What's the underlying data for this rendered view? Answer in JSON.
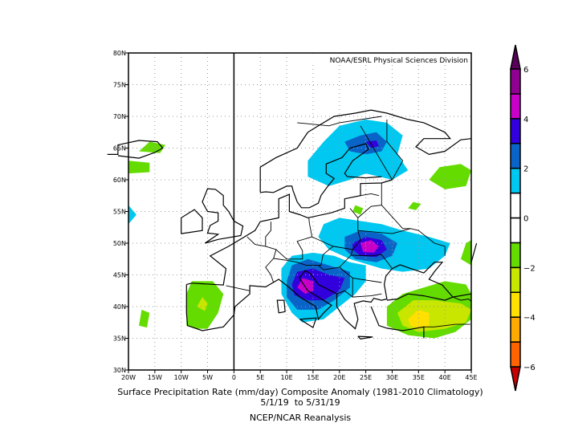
{
  "chart_data": {
    "type": "heatmap",
    "title": "Surface Precipitation Rate (mm/day) Composite Anomaly (1981-2010 Climatology)",
    "date_range": "5/1/19  to 5/31/19",
    "source": "NCEP/NCAR Reanalysis",
    "credit": "NOAA/ESRL Physical Sciences Division",
    "xlim": [
      -20,
      45
    ],
    "ylim": [
      30,
      80
    ],
    "x_ticks": [
      {
        "v": -20,
        "l": "20W"
      },
      {
        "v": -15,
        "l": "15W"
      },
      {
        "v": -10,
        "l": "10W"
      },
      {
        "v": -5,
        "l": "5W"
      },
      {
        "v": 0,
        "l": "0"
      },
      {
        "v": 5,
        "l": "5E"
      },
      {
        "v": 10,
        "l": "10E"
      },
      {
        "v": 15,
        "l": "15E"
      },
      {
        "v": 20,
        "l": "20E"
      },
      {
        "v": 25,
        "l": "25E"
      },
      {
        "v": 30,
        "l": "30E"
      },
      {
        "v": 35,
        "l": "35E"
      },
      {
        "v": 40,
        "l": "40E"
      },
      {
        "v": 45,
        "l": "45E"
      }
    ],
    "y_ticks": [
      {
        "v": 30,
        "l": "30N"
      },
      {
        "v": 35,
        "l": "35N"
      },
      {
        "v": 40,
        "l": "40N"
      },
      {
        "v": 45,
        "l": "45N"
      },
      {
        "v": 50,
        "l": "50N"
      },
      {
        "v": 55,
        "l": "55N"
      },
      {
        "v": 60,
        "l": "60N"
      },
      {
        "v": 65,
        "l": "65N"
      },
      {
        "v": 70,
        "l": "70N"
      },
      {
        "v": 75,
        "l": "75N"
      },
      {
        "v": 80,
        "l": "80N"
      }
    ],
    "colorbar": {
      "levels": [
        -6,
        -5,
        -4,
        -3,
        -2,
        -1,
        0,
        1,
        2,
        3,
        4,
        5,
        6
      ],
      "labels": [
        {
          "v": -6,
          "l": "-6"
        },
        {
          "v": -4,
          "l": "-4"
        },
        {
          "v": -2,
          "l": "-2"
        },
        {
          "v": 0,
          "l": "0"
        },
        {
          "v": 2,
          "l": "2"
        },
        {
          "v": 4,
          "l": "4"
        },
        {
          "v": 6,
          "l": "6"
        }
      ],
      "colors": [
        "#c80000",
        "#ff6400",
        "#ffaa00",
        "#ffe000",
        "#c8e600",
        "#64dc00",
        "#ffffff",
        "#ffffff",
        "#00c8f0",
        "#0a64c8",
        "#3200dc",
        "#c800c8",
        "#900090",
        "#5a005a"
      ]
    },
    "anomaly_regions": [
      {
        "value": 1.5,
        "points": [
          [
            14,
            63
          ],
          [
            17,
            66
          ],
          [
            20,
            68.5
          ],
          [
            25,
            69.5
          ],
          [
            29,
            69
          ],
          [
            32,
            67
          ],
          [
            31,
            64
          ],
          [
            33,
            61.5
          ],
          [
            30,
            60
          ],
          [
            25,
            61
          ],
          [
            22,
            60
          ],
          [
            18,
            59
          ],
          [
            14,
            60.5
          ]
        ]
      },
      {
        "value": 2.5,
        "points": [
          [
            21,
            66
          ],
          [
            24,
            67
          ],
          [
            27,
            67.5
          ],
          [
            29,
            66
          ],
          [
            28,
            64.5
          ],
          [
            25,
            64
          ],
          [
            22,
            64.5
          ]
        ]
      },
      {
        "value": 3.5,
        "points": [
          [
            25,
            66
          ],
          [
            27,
            66.2
          ],
          [
            27.5,
            65.3
          ],
          [
            26,
            65
          ]
        ]
      },
      {
        "value": 1.5,
        "points": [
          [
            17,
            53
          ],
          [
            20,
            54
          ],
          [
            24,
            53.5
          ],
          [
            28,
            53
          ],
          [
            32,
            52
          ],
          [
            37,
            51
          ],
          [
            41,
            50
          ],
          [
            40,
            48
          ],
          [
            37,
            46
          ],
          [
            32,
            45.5
          ],
          [
            28,
            46
          ],
          [
            22,
            47.5
          ],
          [
            18,
            49
          ],
          [
            16,
            51
          ]
        ]
      },
      {
        "value": 2.5,
        "points": [
          [
            21,
            51
          ],
          [
            24,
            52
          ],
          [
            28,
            51.5
          ],
          [
            31,
            50
          ],
          [
            30,
            48
          ],
          [
            27,
            47
          ],
          [
            23,
            47.5
          ],
          [
            21,
            49
          ]
        ]
      },
      {
        "value": 3.5,
        "points": [
          [
            22.5,
            50
          ],
          [
            25,
            51
          ],
          [
            28,
            50.5
          ],
          [
            29,
            49
          ],
          [
            27,
            47.8
          ],
          [
            24,
            48
          ],
          [
            22.5,
            49
          ]
        ]
      },
      {
        "value": 4.5,
        "points": [
          [
            24,
            50
          ],
          [
            26,
            50.5
          ],
          [
            27.5,
            49.5
          ],
          [
            26.5,
            48.5
          ],
          [
            24.5,
            48.6
          ]
        ]
      },
      {
        "value": 1.5,
        "points": [
          [
            9,
            46
          ],
          [
            11,
            48
          ],
          [
            15,
            48.5
          ],
          [
            19,
            48
          ],
          [
            22,
            47
          ],
          [
            25,
            46.5
          ],
          [
            25,
            44
          ],
          [
            23,
            42
          ],
          [
            20,
            40
          ],
          [
            17,
            38
          ],
          [
            13,
            37.5
          ],
          [
            11,
            39
          ],
          [
            9,
            42
          ]
        ]
      },
      {
        "value": 2.5,
        "points": [
          [
            10,
            44
          ],
          [
            11,
            46.5
          ],
          [
            14,
            47.5
          ],
          [
            18,
            46.5
          ],
          [
            22,
            45.5
          ],
          [
            22,
            43
          ],
          [
            19,
            41
          ],
          [
            16,
            39.5
          ],
          [
            12,
            39.5
          ],
          [
            10,
            41.5
          ]
        ]
      },
      {
        "value": 3.5,
        "points": [
          [
            11,
            43.5
          ],
          [
            12,
            45.5
          ],
          [
            15,
            46
          ],
          [
            18,
            45
          ],
          [
            21,
            44.5
          ],
          [
            20,
            42.5
          ],
          [
            17,
            41
          ],
          [
            14,
            41
          ],
          [
            11.5,
            41.8
          ]
        ]
      },
      {
        "value": 4.5,
        "points": [
          [
            12,
            43
          ],
          [
            13,
            44.5
          ],
          [
            15,
            44
          ],
          [
            15,
            42.5
          ],
          [
            13.5,
            42
          ]
        ]
      },
      {
        "value": -1.5,
        "points": [
          [
            29,
            40
          ],
          [
            32,
            42
          ],
          [
            36,
            43
          ],
          [
            40,
            44
          ],
          [
            44,
            43.5
          ],
          [
            45,
            42
          ],
          [
            45,
            38
          ],
          [
            42,
            36
          ],
          [
            38,
            35
          ],
          [
            33,
            35.5
          ],
          [
            29,
            37
          ]
        ]
      },
      {
        "value": -2.5,
        "points": [
          [
            31,
            39
          ],
          [
            34,
            41
          ],
          [
            38,
            41
          ],
          [
            43,
            40.5
          ],
          [
            45,
            39.5
          ],
          [
            44,
            37.5
          ],
          [
            40,
            36.5
          ],
          [
            35,
            36
          ],
          [
            32,
            37
          ]
        ]
      },
      {
        "value": -3.5,
        "points": [
          [
            33,
            38
          ],
          [
            35,
            39.5
          ],
          [
            37,
            39
          ],
          [
            37,
            37
          ],
          [
            35,
            36.5
          ],
          [
            33.5,
            37
          ]
        ]
      },
      {
        "value": -1.5,
        "points": [
          [
            -9,
            37
          ],
          [
            -9,
            42
          ],
          [
            -8,
            44
          ],
          [
            -4,
            44
          ],
          [
            -2,
            42
          ],
          [
            -3,
            39
          ],
          [
            -5,
            36.5
          ],
          [
            -7,
            36.5
          ]
        ]
      },
      {
        "value": -2.5,
        "points": [
          [
            -7,
            40
          ],
          [
            -6,
            41.5
          ],
          [
            -5,
            40.5
          ],
          [
            -5.5,
            39.3
          ]
        ]
      },
      {
        "value": -1.5,
        "points": [
          [
            -18,
            37
          ],
          [
            -17.5,
            39.5
          ],
          [
            -16,
            39
          ],
          [
            -16.5,
            36.7
          ]
        ]
      },
      {
        "value": -1.5,
        "points": [
          [
            -20,
            61
          ],
          [
            -20,
            63
          ],
          [
            -16,
            62.7
          ],
          [
            -16,
            61.2
          ]
        ]
      },
      {
        "value": -1.5,
        "points": [
          [
            -18,
            64.5
          ],
          [
            -16,
            66
          ],
          [
            -13,
            65.5
          ],
          [
            -14,
            64.2
          ]
        ]
      },
      {
        "value": -1.5,
        "points": [
          [
            37,
            60
          ],
          [
            39,
            62
          ],
          [
            43,
            62.5
          ],
          [
            45,
            61.5
          ],
          [
            44,
            59
          ],
          [
            40,
            58.5
          ]
        ]
      },
      {
        "value": -1.5,
        "points": [
          [
            43,
            47.5
          ],
          [
            44,
            50
          ],
          [
            45,
            50.5
          ],
          [
            45,
            46.5
          ]
        ]
      },
      {
        "value": -1.5,
        "points": [
          [
            22.5,
            55
          ],
          [
            23,
            56
          ],
          [
            24.5,
            55.5
          ],
          [
            24,
            54.5
          ]
        ]
      },
      {
        "value": -1.5,
        "points": [
          [
            33,
            55.5
          ],
          [
            34,
            56.5
          ],
          [
            35.5,
            56.2
          ],
          [
            34.5,
            55.2
          ]
        ]
      },
      {
        "value": 1.5,
        "points": [
          [
            -20,
            53
          ],
          [
            -18.5,
            54.5
          ],
          [
            -20,
            56
          ]
        ]
      }
    ]
  }
}
